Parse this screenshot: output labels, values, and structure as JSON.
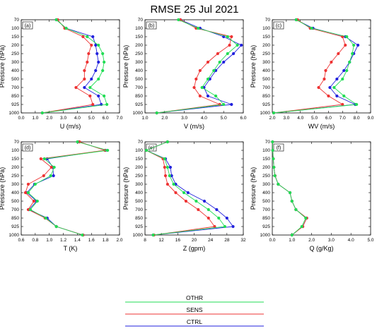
{
  "figure_title": "RMSE   25 Jul 2021",
  "pressure_levels": [
    "70",
    "100",
    "150",
    "200",
    "250",
    "300",
    "400",
    "500",
    "700",
    "850",
    "925",
    "1000"
  ],
  "legend": [
    {
      "label": "OTHR",
      "color": "#22dd55"
    },
    {
      "label": "SENS",
      "color": "#ee3333"
    },
    {
      "label": "CTRL",
      "color": "#2222dd"
    }
  ],
  "chart_data": [
    {
      "panel": "(a)",
      "type": "line",
      "xlabel": "U (m/s)",
      "ylabel": "Pressure (hPa)",
      "xlim": [
        0,
        7
      ],
      "xticks": [
        "0.0",
        "1.0",
        "2.0",
        "3.0",
        "4.0",
        "5.0",
        "6.0",
        "7.0"
      ],
      "series": [
        {
          "name": "OTHR",
          "color": "#22dd55",
          "values": [
            2.5,
            3.2,
            4.7,
            5.5,
            5.8,
            5.9,
            5.8,
            5.5,
            4.9,
            5.9,
            6.1,
            1.5
          ]
        },
        {
          "name": "SENS",
          "color": "#ee3333",
          "values": [
            2.6,
            3.1,
            4.4,
            5.0,
            4.8,
            4.7,
            4.5,
            4.5,
            3.9,
            4.9,
            5.1,
            1.5
          ]
        },
        {
          "name": "CTRL",
          "color": "#2222dd",
          "values": [
            2.5,
            3.2,
            5.1,
            5.3,
            5.4,
            5.5,
            5.3,
            5.0,
            4.5,
            5.5,
            5.7,
            1.5
          ]
        }
      ]
    },
    {
      "panel": "(b)",
      "type": "line",
      "xlabel": "V (m/s)",
      "ylabel": "Pressure (hPa)",
      "xlim": [
        1,
        6
      ],
      "xticks": [
        "1.0",
        "2.0",
        "3.0",
        "4.0",
        "5.0",
        "6.0"
      ],
      "series": [
        {
          "name": "OTHR",
          "color": "#22dd55",
          "values": [
            2.7,
            3.7,
            5.2,
            5.7,
            5.2,
            4.8,
            4.5,
            4.2,
            3.9,
            4.6,
            5.0,
            1.6
          ]
        },
        {
          "name": "SENS",
          "color": "#ee3333",
          "values": [
            2.8,
            3.6,
            5.4,
            5.3,
            4.7,
            4.2,
            3.8,
            3.6,
            3.5,
            3.8,
            4.8,
            1.6
          ]
        },
        {
          "name": "CTRL",
          "color": "#2222dd",
          "values": [
            2.8,
            3.8,
            5.0,
            5.9,
            5.5,
            5.0,
            4.6,
            4.3,
            4.0,
            4.2,
            5.4,
            1.6
          ]
        }
      ]
    },
    {
      "panel": "(c)",
      "type": "line",
      "xlabel": "WV (m/s)",
      "ylabel": "Pressure (hPa)",
      "xlim": [
        2,
        9
      ],
      "xticks": [
        "2.0",
        "3.0",
        "4.0",
        "5.0",
        "6.0",
        "7.0",
        "8.0",
        "9.0"
      ],
      "series": [
        {
          "name": "OTHR",
          "color": "#22dd55",
          "values": [
            3.7,
            4.8,
            7.3,
            7.8,
            7.7,
            7.5,
            7.3,
            7.0,
            6.4,
            7.1,
            8.0,
            2.1
          ]
        },
        {
          "name": "SENS",
          "color": "#ee3333",
          "values": [
            3.8,
            4.7,
            7.0,
            7.2,
            6.7,
            6.2,
            5.8,
            5.7,
            5.3,
            6.0,
            7.0,
            2.1
          ]
        },
        {
          "name": "CTRL",
          "color": "#2222dd",
          "values": [
            3.7,
            4.9,
            7.2,
            8.1,
            7.8,
            7.5,
            7.1,
            6.6,
            6.1,
            6.6,
            7.9,
            2.1
          ]
        }
      ]
    },
    {
      "panel": "(d)",
      "type": "line",
      "xlabel": "T (K)",
      "ylabel": "Pressure (hPa)",
      "xlim": [
        0.6,
        2.0
      ],
      "xticks": [
        "0.6",
        "0.8",
        "1.0",
        "1.2",
        "1.4",
        "1.6",
        "1.8",
        "2.0"
      ],
      "series": [
        {
          "name": "OTHR",
          "color": "#22dd55",
          "values": [
            1.4,
            1.83,
            0.93,
            1.07,
            1.02,
            0.8,
            0.7,
            0.83,
            0.73,
            0.95,
            1.1,
            1.47
          ]
        },
        {
          "name": "SENS",
          "color": "#ee3333",
          "values": [
            1.43,
            1.79,
            0.88,
            1.03,
            0.92,
            0.7,
            0.66,
            0.78,
            0.7,
            0.94,
            1.1,
            1.48
          ]
        },
        {
          "name": "CTRL",
          "color": "#2222dd",
          "values": [
            1.42,
            1.8,
            0.97,
            1.05,
            1.06,
            0.79,
            0.68,
            0.82,
            0.71,
            0.97,
            1.1,
            1.48
          ]
        }
      ]
    },
    {
      "panel": "(e)",
      "type": "line",
      "xlabel": "Z (gpm)",
      "ylabel": "Pressure (hPa)",
      "xlim": [
        8,
        32
      ],
      "xticks": [
        "8",
        "12",
        "16",
        "20",
        "24",
        "28",
        "32"
      ],
      "series": [
        {
          "name": "OTHR",
          "color": "#22dd55",
          "values": [
            13.5,
            8.3,
            12.8,
            13.5,
            14.0,
            15.0,
            17.5,
            20.5,
            23.5,
            26.0,
            27.5,
            10.0
          ]
        },
        {
          "name": "SENS",
          "color": "#ee3333",
          "values": [
            13.5,
            8.3,
            12.4,
            12.8,
            13.0,
            13.5,
            15.5,
            18.0,
            21.0,
            23.5,
            25.0,
            10.2
          ]
        },
        {
          "name": "CTRL",
          "color": "#2222dd",
          "values": [
            13.5,
            8.3,
            13.0,
            14.2,
            14.5,
            15.5,
            18.5,
            22.5,
            25.5,
            28.0,
            29.5,
            10.0
          ]
        }
      ]
    },
    {
      "panel": "(f)",
      "type": "line",
      "xlabel": "Q (g/Kg)",
      "ylabel": "Pressure (hPa)",
      "xlim": [
        0,
        5
      ],
      "xticks": [
        "0.0",
        "1.0",
        "2.0",
        "3.0",
        "4.0",
        "5.0"
      ],
      "series": [
        {
          "name": "OTHR",
          "color": "#22dd55",
          "values": [
            0.01,
            0.02,
            0.05,
            0.08,
            0.13,
            0.3,
            0.9,
            1.0,
            1.2,
            1.7,
            1.5,
            1.0
          ]
        },
        {
          "name": "SENS",
          "color": "#ee3333",
          "values": [
            0.01,
            0.02,
            0.05,
            0.08,
            0.14,
            0.3,
            0.9,
            1.0,
            1.2,
            1.75,
            1.55,
            1.0
          ]
        },
        {
          "name": "CTRL",
          "color": "#2222dd",
          "values": [
            0.01,
            0.02,
            0.05,
            0.08,
            0.14,
            0.3,
            0.9,
            1.0,
            1.2,
            1.75,
            1.55,
            1.0
          ]
        }
      ]
    }
  ]
}
